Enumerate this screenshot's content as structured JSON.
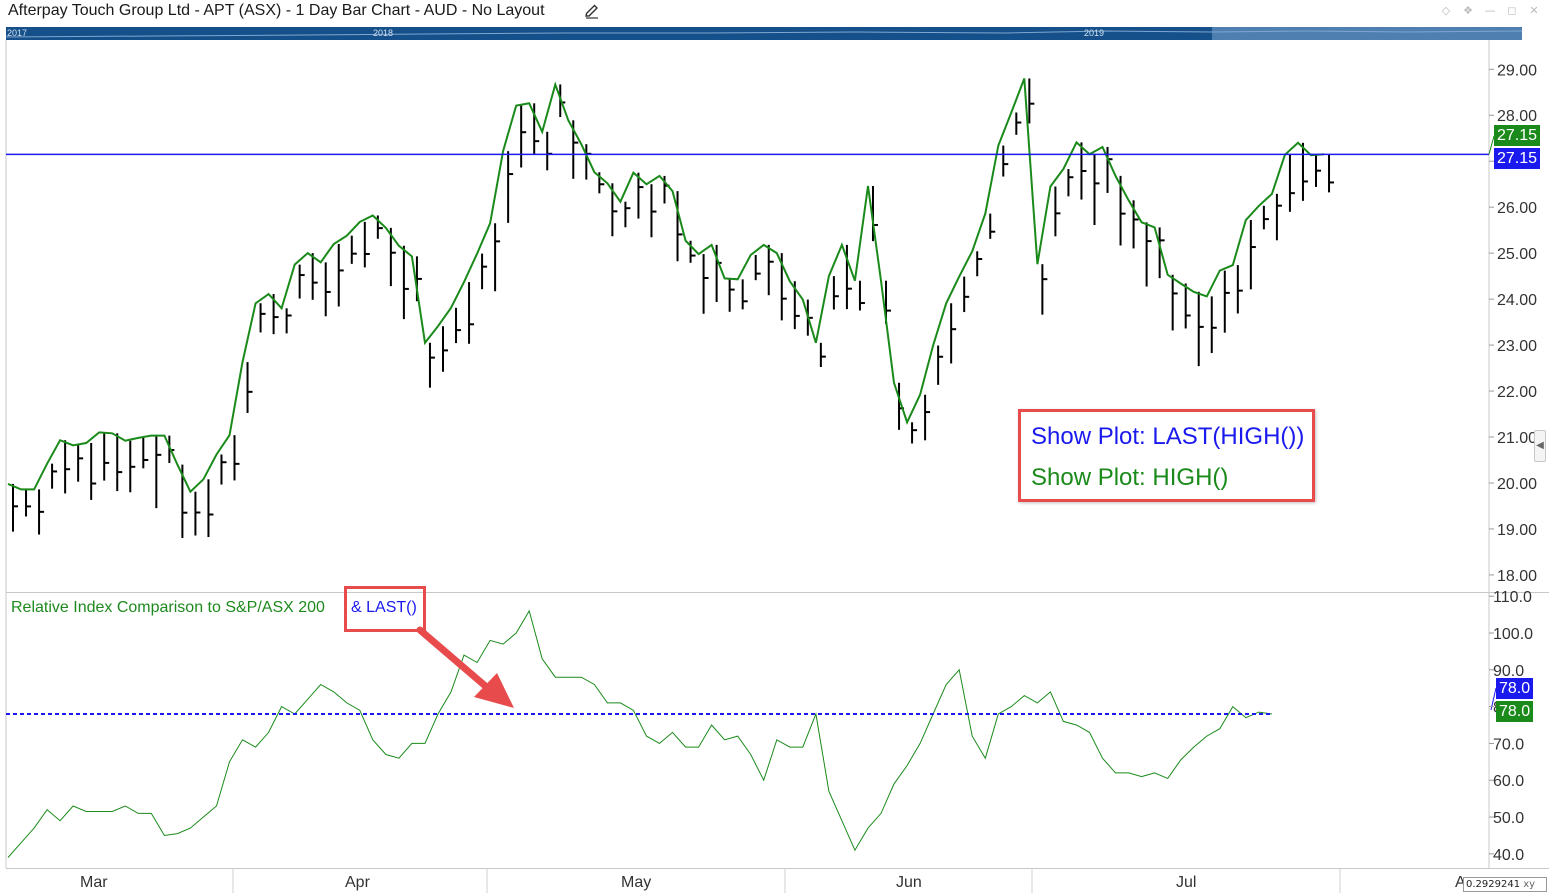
{
  "window": {
    "title": "Afterpay Touch Group Ltd - APT (ASX) - 1 Day Bar Chart - AUD - No Layout",
    "icons": [
      "edit-icon",
      "diamond-icon",
      "pin-icon",
      "minimize-icon",
      "restore-icon",
      "close-icon"
    ]
  },
  "navigator": {
    "years": [
      "2017",
      "2018",
      "2019"
    ]
  },
  "annotations": {
    "legend_last_high": "Show Plot: LAST(HIGH())",
    "legend_high": "Show Plot: HIGH()",
    "indicator_title": "Relative Index Comparison to S&P/ASX 200",
    "indicator_last": "& LAST()"
  },
  "readout": "0.2929241",
  "readout_unit": "xy",
  "colors": {
    "high_line": "#1a8a1a",
    "last_line": "#1a1aee",
    "bars": "#000000",
    "annotation_border": "#e84b4b",
    "arrow": "#e84b4b",
    "nav_bg": "#16508a"
  },
  "chart_data": [
    {
      "type": "bar",
      "subtype": "ohlc",
      "title": "Afterpay Touch Group Ltd - APT (ASX) - 1 Day Bar Chart - AUD - No Layout",
      "x_labels": [
        "Mar",
        "Apr",
        "May",
        "Jun",
        "Jul",
        "A"
      ],
      "y_ticks": [
        "18.00",
        "19.00",
        "20.00",
        "21.00",
        "22.00",
        "23.00",
        "24.00",
        "25.00",
        "26.00",
        "27.00",
        "28.00",
        "29.00"
      ],
      "ylim": [
        17.65,
        29.55
      ],
      "series": [
        {
          "name": "HIGH()",
          "values": [
            19.98,
            19.86,
            19.86,
            20.42,
            20.93,
            20.82,
            20.87,
            21.1,
            21.08,
            20.92,
            20.98,
            21.03,
            21.03,
            20.4,
            19.81,
            20.08,
            20.62,
            21.04,
            22.63,
            23.91,
            24.11,
            23.8,
            24.75,
            25.0,
            24.8,
            25.2,
            25.38,
            25.68,
            25.82,
            25.55,
            25.16,
            24.93,
            23.05,
            23.41,
            23.81,
            24.37,
            24.99,
            25.65,
            27.22,
            28.21,
            28.26,
            27.64,
            28.67,
            27.89,
            27.37,
            26.76,
            26.52,
            26.12,
            26.75,
            26.5,
            26.68,
            26.35,
            25.27,
            24.98,
            25.18,
            24.45,
            24.43,
            24.96,
            25.18,
            25.0,
            24.39,
            23.99,
            23.05,
            24.5,
            25.18,
            24.4,
            26.46,
            24.4,
            22.18,
            21.32,
            21.92,
            22.99,
            23.91,
            24.49,
            25.04,
            25.86,
            27.34,
            28.06,
            28.8,
            24.76,
            26.45,
            26.83,
            27.41,
            27.15,
            27.31,
            26.68,
            26.15,
            25.67,
            25.56,
            24.53,
            24.34,
            24.16,
            24.06,
            24.62,
            24.74,
            25.72,
            26.03,
            26.29,
            27.14,
            27.4,
            27.13,
            27.15
          ]
        },
        {
          "name": "LAST(HIGH())",
          "values": [
            27.15
          ]
        }
      ],
      "last_value_labels": [
        "27.15",
        "27.15"
      ]
    },
    {
      "type": "line",
      "title": "Relative Index Comparison to S&P/ASX 200",
      "y_ticks": [
        "40.0",
        "50.0",
        "60.0",
        "70.0",
        "80.0",
        "90.0",
        "100.0",
        "110.0"
      ],
      "ylim": [
        36.7,
        110.6
      ],
      "series": [
        {
          "name": "Relative Index Comparison to S&P/ASX 200",
          "values": [
            39.0,
            43.0,
            47.0,
            52.0,
            49.0,
            53.0,
            51.5,
            51.5,
            51.5,
            53.0,
            51.0,
            51.0,
            45.0,
            45.5,
            47.0,
            50.0,
            53.0,
            65.0,
            71.0,
            69.0,
            73.0,
            80.0,
            78.0,
            82.0,
            86.0,
            84.0,
            81.0,
            79.0,
            71.0,
            67.0,
            66.0,
            70.0,
            70.0,
            78.0,
            84.0,
            94.0,
            92.0,
            98.0,
            97.0,
            100.0,
            106.0,
            93.0,
            88.0,
            88.0,
            88.0,
            86.0,
            81.0,
            81.0,
            79.0,
            72.0,
            70.0,
            73.0,
            69.0,
            69.0,
            75.0,
            71.0,
            72.0,
            67.0,
            60.0,
            71.0,
            69.0,
            69.0,
            78.0,
            57.0,
            49.0,
            41.0,
            47.0,
            51.0,
            59.0,
            64.0,
            70.0,
            78.0,
            86.0,
            90.0,
            72.0,
            66.0,
            78.0,
            80.0,
            83.0,
            81.0,
            84.0,
            76.0,
            75.0,
            73.0,
            66.0,
            62.0,
            62.0,
            61.0,
            62.0,
            60.5,
            65.5,
            69.0,
            72.0,
            74.0,
            80.0,
            77.0,
            78.5,
            78.0
          ]
        },
        {
          "name": "LAST()",
          "values": [
            78.0
          ]
        }
      ],
      "last_value_labels": [
        "78.0",
        "78.0"
      ]
    }
  ]
}
